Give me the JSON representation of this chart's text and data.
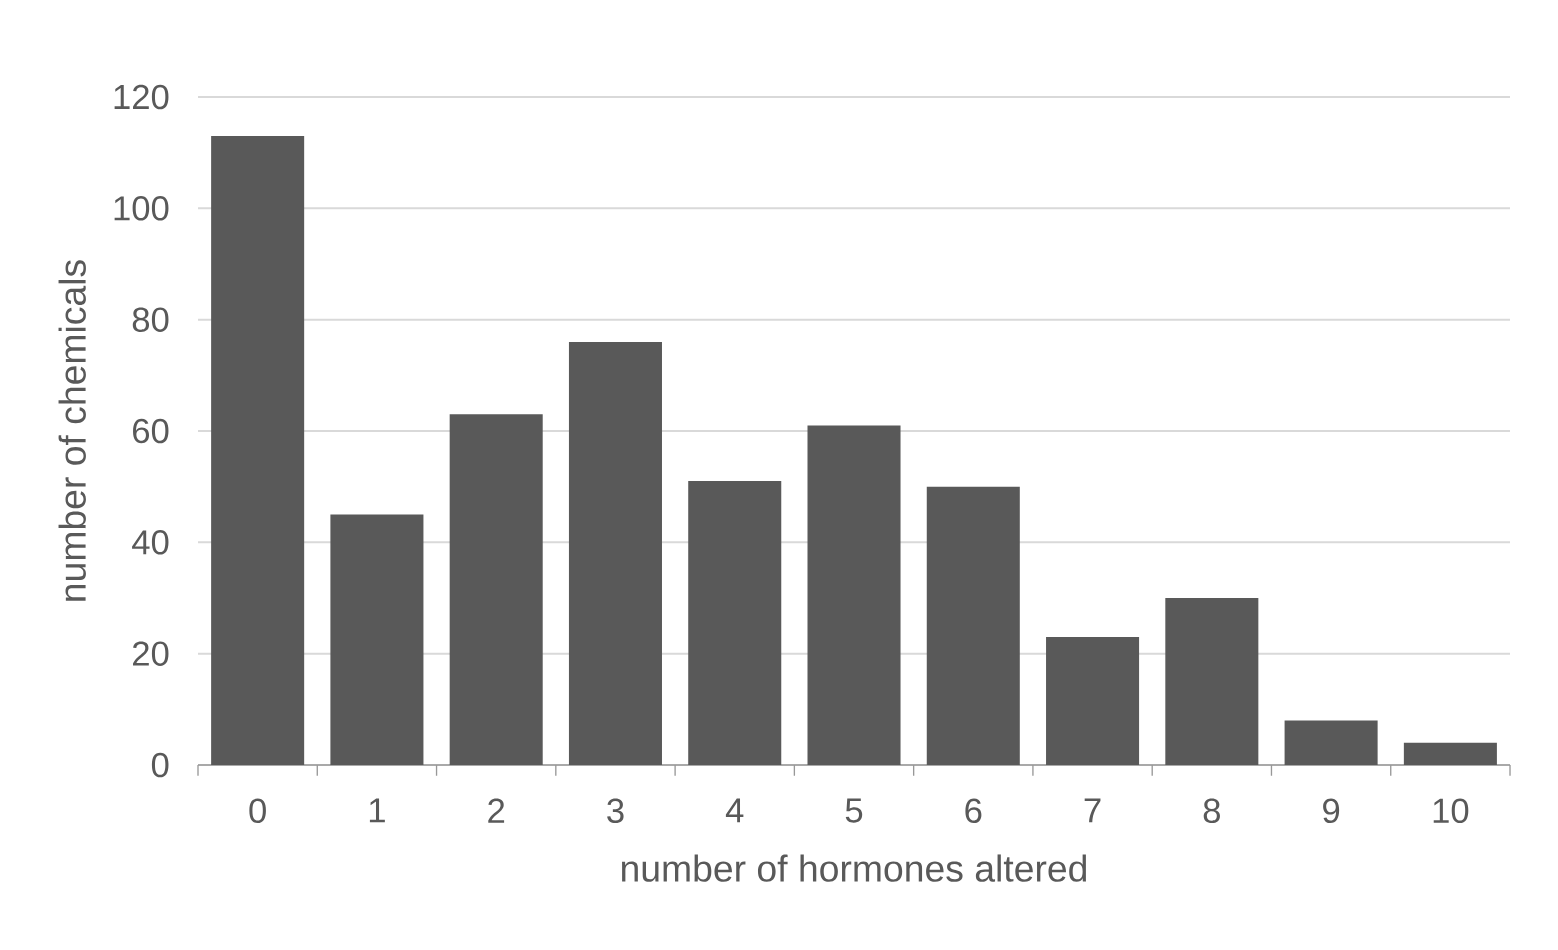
{
  "chart_data": {
    "type": "bar",
    "xlabel": "number of hormones altered",
    "ylabel": "number of chemicals",
    "categories": [
      "0",
      "1",
      "2",
      "3",
      "4",
      "5",
      "6",
      "7",
      "8",
      "9",
      "10"
    ],
    "values": [
      113,
      45,
      63,
      76,
      51,
      61,
      50,
      23,
      30,
      8,
      4
    ],
    "color": "#595959",
    "ylim": [
      0,
      120
    ],
    "yticks": [
      0,
      20,
      40,
      60,
      80,
      100,
      120
    ],
    "grid": "y"
  }
}
